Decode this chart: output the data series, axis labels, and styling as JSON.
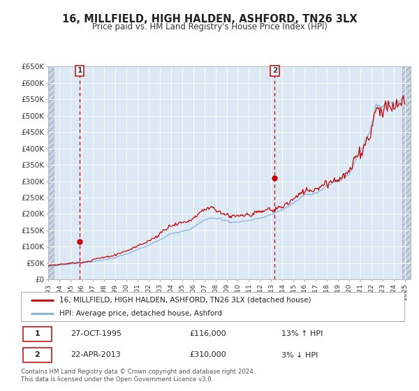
{
  "title": "16, MILLFIELD, HIGH HALDEN, ASHFORD, TN26 3LX",
  "subtitle": "Price paid vs. HM Land Registry's House Price Index (HPI)",
  "legend_line1": "16, MILLFIELD, HIGH HALDEN, ASHFORD, TN26 3LX (detached house)",
  "legend_line2": "HPI: Average price, detached house, Ashford",
  "footnote": "Contains HM Land Registry data © Crown copyright and database right 2024.\nThis data is licensed under the Open Government Licence v3.0.",
  "sale1_date": "27-OCT-1995",
  "sale1_price": "£116,000",
  "sale1_hpi": "13% ↑ HPI",
  "sale2_date": "22-APR-2013",
  "sale2_price": "£310,000",
  "sale2_hpi": "3% ↓ HPI",
  "hpi_line_color": "#7ab0d8",
  "price_line_color": "#cc0000",
  "marker_color": "#cc0000",
  "dashed_line_color": "#cc0000",
  "bg_color": "#dce9f5",
  "hatch_bg_color": "#c8d5e6",
  "grid_color": "#ffffff",
  "ylim": [
    0,
    650000
  ],
  "yticks": [
    0,
    50000,
    100000,
    150000,
    200000,
    250000,
    300000,
    350000,
    400000,
    450000,
    500000,
    550000,
    600000,
    650000
  ],
  "ytick_labels": [
    "£0",
    "£50K",
    "£100K",
    "£150K",
    "£200K",
    "£250K",
    "£300K",
    "£350K",
    "£400K",
    "£450K",
    "£500K",
    "£550K",
    "£600K",
    "£650K"
  ],
  "sale1_x": 1995.82,
  "sale1_y": 116000,
  "sale2_x": 2013.31,
  "sale2_y": 310000,
  "vline1_x": 1995.82,
  "vline2_x": 2013.31,
  "xlim_left": 1993.0,
  "xlim_right": 2025.5,
  "hatch_left_end": 1993.5,
  "hatch_right_start": 2024.75
}
